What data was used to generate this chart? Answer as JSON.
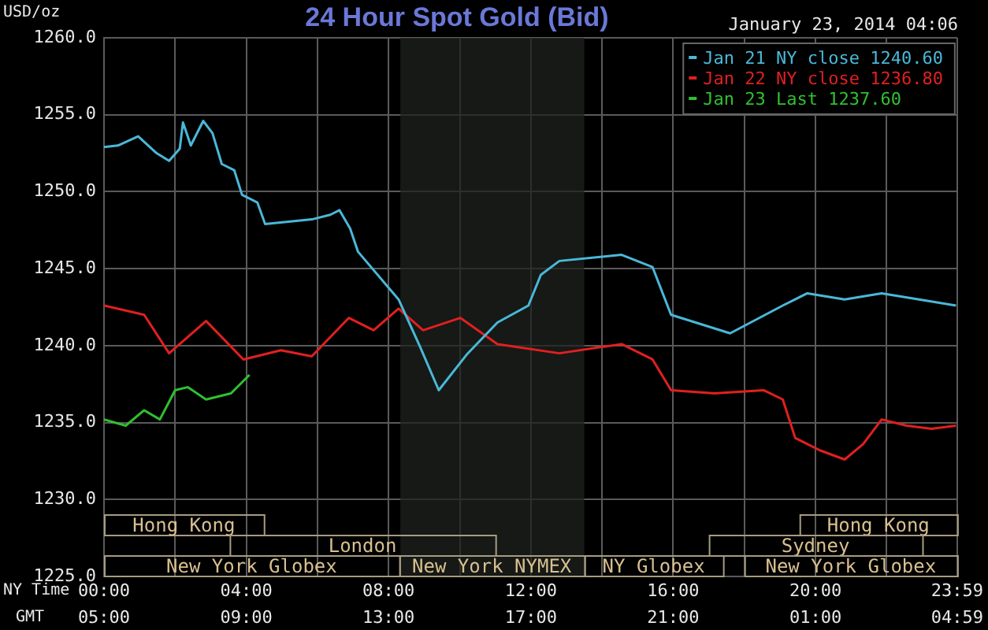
{
  "chart_data": {
    "type": "line",
    "title": "24 Hour Spot Gold (Bid)",
    "subtitle": "January 23, 2014 04:06",
    "ylabel": "USD/oz",
    "xlabel": "NY Time",
    "x2label": "GMT",
    "xlim": [
      0,
      23.983
    ],
    "xticks": [
      {
        "value": 0,
        "label": "00:00"
      },
      {
        "value": 2,
        "label": null
      },
      {
        "value": 4,
        "label": "04:00"
      },
      {
        "value": 6,
        "label": null
      },
      {
        "value": 8,
        "label": "08:00"
      },
      {
        "value": 10,
        "label": null
      },
      {
        "value": 12,
        "label": "12:00"
      },
      {
        "value": 14,
        "label": null
      },
      {
        "value": 16,
        "label": "16:00"
      },
      {
        "value": 18,
        "label": null
      },
      {
        "value": 20,
        "label": "20:00"
      },
      {
        "value": 22,
        "label": null
      },
      {
        "value": 23.983,
        "label": "23:59"
      }
    ],
    "x2lim": [
      "2014-01-23T05:00",
      "2014-01-24T04:59"
    ],
    "x2ticks": [
      {
        "value": "2014-01-23T05:00",
        "label": "05:00"
      },
      {
        "value": "2014-01-23T09:00",
        "label": "09:00"
      },
      {
        "value": "2014-01-23T13:00",
        "label": "13:00"
      },
      {
        "value": "2014-01-23T17:00",
        "label": "17:00"
      },
      {
        "value": "2014-01-23T21:00",
        "label": "21:00"
      },
      {
        "value": "2014-01-24T01:00",
        "label": "01:00"
      },
      {
        "value": "2014-01-24T04:59",
        "label": "04:59"
      }
    ],
    "ylim": [
      1225,
      1260
    ],
    "yticks": [
      {
        "value": 1225,
        "label": "1225.0"
      },
      {
        "value": 1230,
        "label": "1230.0"
      },
      {
        "value": 1235,
        "label": "1235.0"
      },
      {
        "value": 1240,
        "label": "1240.0"
      },
      {
        "value": 1245,
        "label": "1245.0"
      },
      {
        "value": 1250,
        "label": "1250.0"
      },
      {
        "value": 1255,
        "label": "1255.0"
      },
      {
        "value": 1260,
        "label": "1260.0"
      }
    ],
    "grid": true,
    "legend": "top right",
    "bands": [
      {
        "axis": "x",
        "from": 8.33,
        "to": 13.5,
        "color": "#1e221e"
      }
    ],
    "annotations": [
      "Hong Kong",
      "Hong Kong",
      "London",
      "Sydney",
      "New York Globex",
      "New York NYMEX",
      "NY Globex",
      "New York Globex"
    ],
    "series": [
      {
        "name": "Jan 21 NY close 1240.60",
        "color": "#4ab8d8",
        "x": [
          0,
          0.39,
          0.96,
          1.48,
          1.83,
          2.13,
          2.22,
          2.44,
          2.79,
          3.05,
          3.31,
          3.66,
          3.88,
          4.31,
          4.53,
          4.97,
          5.84,
          6.36,
          6.62,
          6.92,
          7.14,
          8.28,
          8.89,
          9.41,
          10.19,
          11.06,
          11.93,
          12.28,
          12.8,
          14.55,
          15.42,
          15.94,
          17.6,
          19.08,
          19.77,
          20.82,
          21.86,
          22.91,
          23.95
        ],
        "values": [
          1252.9,
          1253.0,
          1253.6,
          1252.5,
          1252.0,
          1252.8,
          1254.5,
          1253.0,
          1254.6,
          1253.8,
          1251.8,
          1251.4,
          1249.8,
          1249.3,
          1247.9,
          1248.0,
          1248.2,
          1248.5,
          1248.8,
          1247.6,
          1246.1,
          1243.0,
          1239.9,
          1237.1,
          1239.4,
          1241.5,
          1242.6,
          1244.6,
          1245.5,
          1245.9,
          1245.1,
          1242.0,
          1240.8,
          1242.6,
          1243.4,
          1243.0,
          1243.4,
          1243.0,
          1242.6
        ]
      },
      {
        "name": "Jan 22 NY close 1236.80",
        "color": "#e02020",
        "x": [
          0,
          1.13,
          1.83,
          2.87,
          3.92,
          4.97,
          5.84,
          6.88,
          7.58,
          8.28,
          8.97,
          10.02,
          11.06,
          12.8,
          14.55,
          15.42,
          15.94,
          17.16,
          18.55,
          19.08,
          19.43,
          20.12,
          20.82,
          21.34,
          21.86,
          22.56,
          23.26,
          23.95
        ],
        "values": [
          1242.6,
          1242.0,
          1239.5,
          1241.6,
          1239.1,
          1239.7,
          1239.3,
          1241.8,
          1241.0,
          1242.4,
          1241.0,
          1241.8,
          1240.1,
          1239.5,
          1240.1,
          1239.1,
          1237.1,
          1236.9,
          1237.1,
          1236.5,
          1234.0,
          1233.2,
          1232.6,
          1233.6,
          1235.2,
          1234.8,
          1234.6,
          1234.8
        ]
      },
      {
        "name": "Jan 23 Last 1237.60",
        "color": "#30c030",
        "x": [
          0,
          0.61,
          1.13,
          1.57,
          2.0,
          2.35,
          2.87,
          3.57,
          4.09
        ],
        "values": [
          1235.2,
          1234.8,
          1235.8,
          1235.2,
          1237.1,
          1237.3,
          1236.5,
          1236.9,
          1238.1
        ]
      }
    ]
  }
}
